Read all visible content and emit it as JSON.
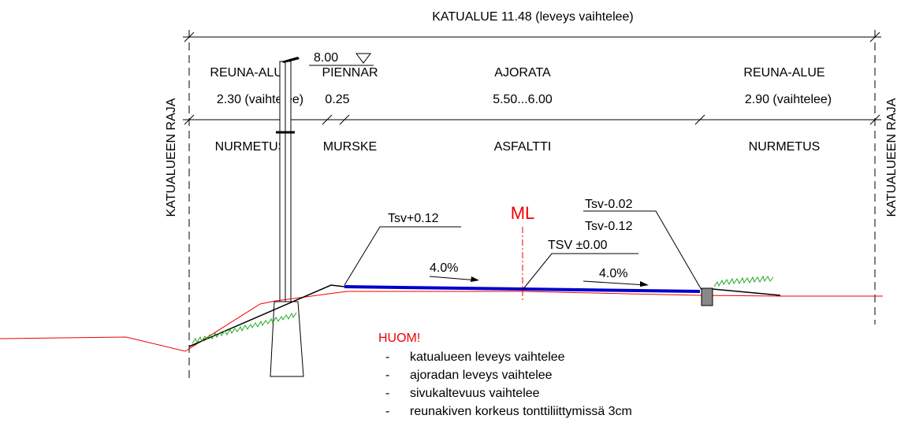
{
  "title": "KATUALUE  11.48 (leveys vaihtelee)",
  "elevation": "8.00",
  "boundary_labels": [
    "KATUALUEEN RAJA",
    "KATUALUEEN RAJA"
  ],
  "zones": [
    {
      "name": "REUNA-ALUE",
      "width": "2.30 (vaihtelee)",
      "surface": "NURMETUS"
    },
    {
      "name": "PIENNAR",
      "width": "0.25",
      "surface": "MURSKE"
    },
    {
      "name": "AJORATA",
      "width": "5.50...6.00",
      "surface": "ASFALTTI"
    },
    {
      "name": "REUNA-ALUE",
      "width": "2.90 (vaihtelee)",
      "surface": "NURMETUS"
    }
  ],
  "centerline": "ML",
  "levels": {
    "edge": "Tsv+0.12",
    "center": "TSV ±0.00",
    "curb_top": "Tsv-0.02",
    "curb_bottom": "Tsv-0.12"
  },
  "slopes": [
    "4.0%",
    "4.0%"
  ],
  "note": {
    "title": "HUOM!",
    "items": [
      "katualueen leveys vaihtelee",
      "ajoradan leveys vaihtelee",
      "sivukaltevuus vaihtelee",
      "reunakiven korkeus tonttiliittymissä 3cm"
    ]
  }
}
